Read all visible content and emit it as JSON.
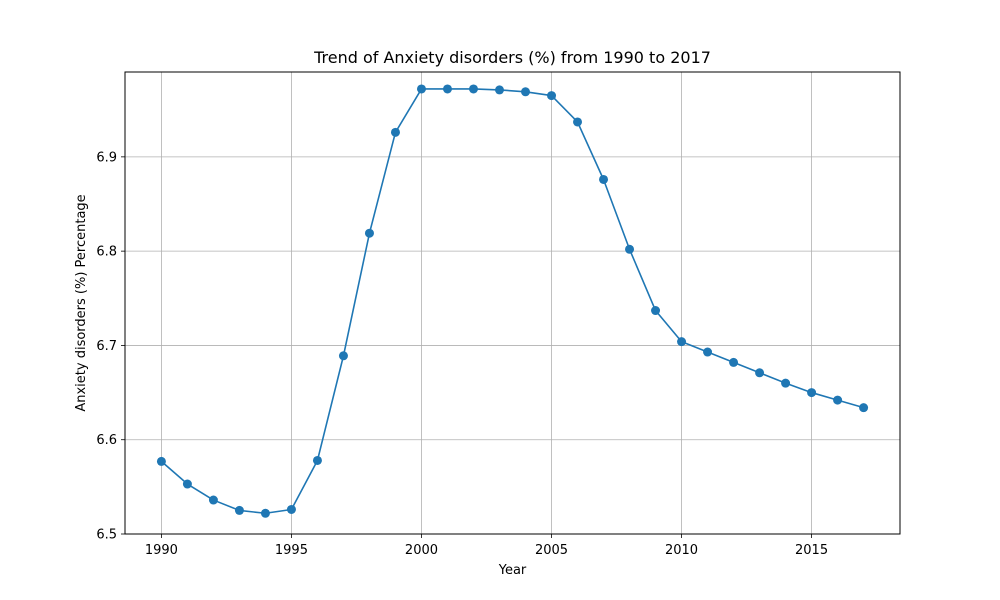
{
  "chart_data": {
    "type": "line",
    "title": "Trend of Anxiety disorders (%) from 1990 to 2017",
    "xlabel": "Year",
    "ylabel": "Anxiety disorders (%) Percentage",
    "xlim": [
      1988.6,
      2018.4
    ],
    "ylim": [
      6.5,
      6.99
    ],
    "xticks": [
      1990,
      1995,
      2000,
      2005,
      2010,
      2015
    ],
    "yticks": [
      6.5,
      6.6,
      6.7,
      6.8,
      6.9
    ],
    "xtick_labels": [
      "1990",
      "1995",
      "2000",
      "2005",
      "2010",
      "2015"
    ],
    "ytick_labels": [
      "6.5",
      "6.6",
      "6.7",
      "6.8",
      "6.9"
    ],
    "grid": true,
    "color": "#1f77b4",
    "marker": "circle",
    "x": [
      1990,
      1991,
      1992,
      1993,
      1994,
      1995,
      1996,
      1997,
      1998,
      1999,
      2000,
      2001,
      2002,
      2003,
      2004,
      2005,
      2006,
      2007,
      2008,
      2009,
      2010,
      2011,
      2012,
      2013,
      2014,
      2015,
      2016,
      2017
    ],
    "y": [
      6.577,
      6.553,
      6.536,
      6.525,
      6.522,
      6.526,
      6.578,
      6.689,
      6.819,
      6.926,
      6.972,
      6.972,
      6.972,
      6.971,
      6.969,
      6.965,
      6.937,
      6.876,
      6.802,
      6.737,
      6.704,
      6.693,
      6.682,
      6.671,
      6.66,
      6.65,
      6.642,
      6.634
    ]
  }
}
